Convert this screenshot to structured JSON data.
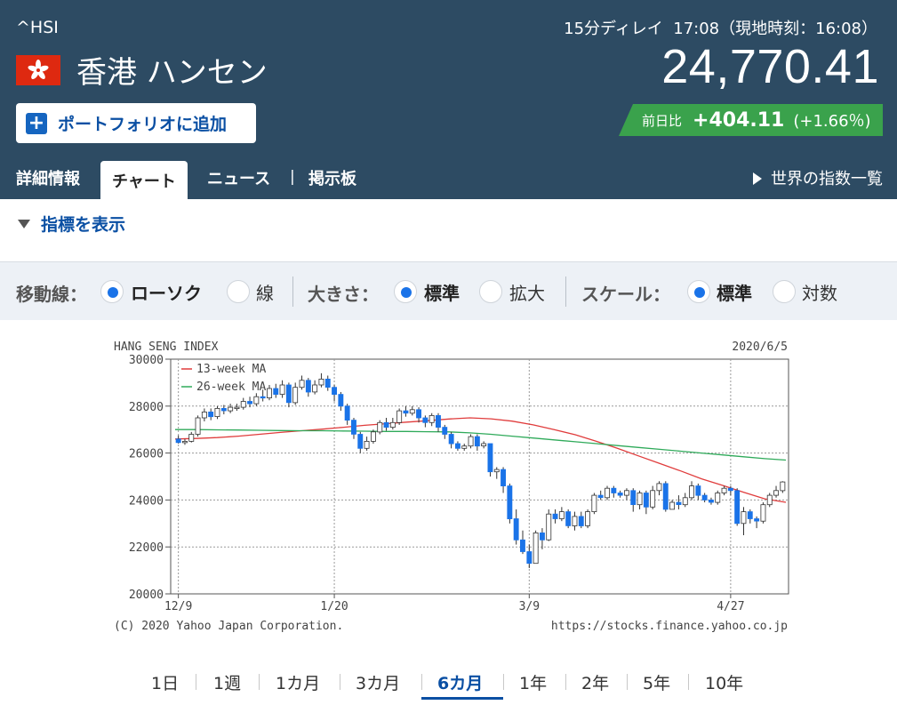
{
  "header": {
    "ticker": "^HSI",
    "name": "香港 ハンセン",
    "add_button": "ポートフォリオに追加",
    "delay": "15分ディレイ",
    "time": "17:08（現地時刻：16:08）",
    "price": "24,770.41",
    "change_label": "前日比",
    "change_value": "+404.11",
    "change_percent": "(+1.66％)",
    "colors": {
      "background": "#2d4b63",
      "change_bg": "#3aa24c",
      "flag": "#de2910"
    }
  },
  "tabs": [
    {
      "label": "詳細情報"
    },
    {
      "label": "チャート",
      "active": true
    },
    {
      "label": "ニュース"
    },
    {
      "label": "掲示板"
    }
  ],
  "tab_separator": "|",
  "world_link": "世界の指数一覧",
  "indicator_toggle": "指標を表示",
  "options": {
    "ma_label": "移動線：",
    "ma_options": [
      {
        "label": "ローソク",
        "selected": true
      },
      {
        "label": "線",
        "selected": false
      }
    ],
    "size_label": "大きさ：",
    "size_options": [
      {
        "label": "標準",
        "selected": true
      },
      {
        "label": "拡大",
        "selected": false
      }
    ],
    "scale_label": "スケール：",
    "scale_options": [
      {
        "label": "標準",
        "selected": true
      },
      {
        "label": "対数",
        "selected": false
      }
    ]
  },
  "periods": [
    {
      "label": "1日"
    },
    {
      "label": "1週"
    },
    {
      "label": "1カ月"
    },
    {
      "label": "3カ月"
    },
    {
      "label": "6カ月",
      "active": true
    },
    {
      "label": "1年"
    },
    {
      "label": "2年"
    },
    {
      "label": "5年"
    },
    {
      "label": "10年"
    }
  ],
  "chart_data": {
    "type": "candlestick",
    "title": "HANG SENG INDEX",
    "date": "2020/6/5",
    "copyright": "(C) 2020 Yahoo Japan Corporation.",
    "url": "https://stocks.finance.yahoo.co.jp",
    "ylim": [
      20000,
      30000
    ],
    "yticks": [
      30000,
      28000,
      26000,
      24000,
      22000,
      20000
    ],
    "ytick_labels": [
      "30000",
      "28000",
      "26000",
      "24000",
      "22000",
      "20000"
    ],
    "xticks": [
      {
        "label": "12/9",
        "index": 0
      },
      {
        "label": "1/20",
        "index": 24
      },
      {
        "label": "3/9",
        "index": 54
      },
      {
        "label": "4/27",
        "index": 85
      }
    ],
    "legend": [
      {
        "name": "13-week MA",
        "color": "#e03c3c"
      },
      {
        "name": "26-week MA",
        "color": "#2faa5a"
      }
    ],
    "up_color": "#ffffff",
    "down_color": "#1a73e8",
    "candles": [
      [
        26600,
        26450,
        26750,
        26400
      ],
      [
        26450,
        26500,
        26600,
        26350
      ],
      [
        26500,
        26800,
        26900,
        26450
      ],
      [
        26800,
        27500,
        27600,
        26700
      ],
      [
        27500,
        27750,
        27900,
        27350
      ],
      [
        27750,
        27550,
        27900,
        27400
      ],
      [
        27550,
        27900,
        28000,
        27450
      ],
      [
        27900,
        27800,
        28050,
        27650
      ],
      [
        27800,
        27950,
        28100,
        27700
      ],
      [
        27950,
        27950,
        28100,
        27800
      ],
      [
        27950,
        28200,
        28350,
        27850
      ],
      [
        28200,
        28100,
        28400,
        27950
      ],
      [
        28100,
        28400,
        28550,
        28000
      ],
      [
        28400,
        28350,
        28700,
        28200
      ],
      [
        28350,
        28750,
        28900,
        28250
      ],
      [
        28750,
        28500,
        28950,
        28350
      ],
      [
        28500,
        28900,
        29100,
        28350
      ],
      [
        28900,
        28150,
        29000,
        27950
      ],
      [
        28150,
        28800,
        29000,
        28050
      ],
      [
        28800,
        29100,
        29300,
        28700
      ],
      [
        29100,
        28600,
        29200,
        28400
      ],
      [
        28600,
        28900,
        29100,
        28500
      ],
      [
        28900,
        29150,
        29400,
        28800
      ],
      [
        29150,
        28800,
        29300,
        28650
      ],
      [
        28800,
        28500,
        28900,
        28200
      ],
      [
        28500,
        28000,
        28600,
        27800
      ],
      [
        28000,
        27400,
        28100,
        27200
      ],
      [
        27400,
        26800,
        27500,
        26600
      ],
      [
        26800,
        26200,
        26900,
        26000
      ],
      [
        26200,
        26500,
        26700,
        26100
      ],
      [
        26500,
        26900,
        27000,
        26400
      ],
      [
        26900,
        27300,
        27400,
        26800
      ],
      [
        27300,
        27100,
        27500,
        26950
      ],
      [
        27100,
        27300,
        27500,
        27000
      ],
      [
        27300,
        27800,
        27900,
        27200
      ],
      [
        27800,
        27700,
        28000,
        27550
      ],
      [
        27700,
        27850,
        28000,
        27600
      ],
      [
        27850,
        27500,
        27950,
        27300
      ],
      [
        27500,
        27300,
        27600,
        27100
      ],
      [
        27300,
        27600,
        27700,
        27150
      ],
      [
        27600,
        27100,
        27700,
        26900
      ],
      [
        27100,
        26800,
        27200,
        26600
      ],
      [
        26800,
        26400,
        26900,
        26200
      ],
      [
        26400,
        26200,
        26500,
        26100
      ],
      [
        26200,
        26300,
        26400,
        26100
      ],
      [
        26300,
        26700,
        26800,
        26200
      ],
      [
        26700,
        26300,
        26800,
        26100
      ],
      [
        26300,
        26400,
        26500,
        26200
      ],
      [
        26400,
        25200,
        26400,
        25000
      ],
      [
        25200,
        25300,
        25400,
        24900
      ],
      [
        25300,
        24600,
        25400,
        24300
      ],
      [
        24600,
        23200,
        24700,
        23000
      ],
      [
        23200,
        22300,
        23600,
        22100
      ],
      [
        22300,
        21800,
        22700,
        21700
      ],
      [
        21800,
        21300,
        22100,
        21100
      ],
      [
        21300,
        22600,
        22700,
        21300
      ],
      [
        22600,
        22300,
        22800,
        21900
      ],
      [
        22300,
        23400,
        23600,
        22250
      ],
      [
        23400,
        23200,
        23600,
        23000
      ],
      [
        23200,
        23500,
        23700,
        23100
      ],
      [
        23500,
        22900,
        23600,
        22800
      ],
      [
        22900,
        23300,
        23500,
        22700
      ],
      [
        23300,
        22900,
        23500,
        22800
      ],
      [
        22900,
        23500,
        23600,
        22800
      ],
      [
        23500,
        24200,
        24300,
        23400
      ],
      [
        24200,
        24100,
        24400,
        24000
      ],
      [
        24100,
        24500,
        24600,
        24000
      ],
      [
        24500,
        24300,
        24600,
        24100
      ],
      [
        24300,
        24200,
        24400,
        24100
      ],
      [
        24200,
        24400,
        24500,
        24000
      ],
      [
        24400,
        23800,
        24500,
        23500
      ],
      [
        23800,
        24300,
        24400,
        23600
      ],
      [
        24300,
        23700,
        24400,
        23400
      ],
      [
        23700,
        24400,
        24600,
        23600
      ],
      [
        24400,
        24700,
        24800,
        24200
      ],
      [
        24700,
        23600,
        24800,
        23500
      ],
      [
        23600,
        23900,
        24000,
        23600
      ],
      [
        23900,
        23800,
        24200,
        23600
      ],
      [
        23800,
        24100,
        24300,
        23700
      ],
      [
        24100,
        24600,
        24800,
        24000
      ],
      [
        24600,
        24200,
        24700,
        24000
      ],
      [
        24200,
        24000,
        24300,
        23900
      ],
      [
        24000,
        23900,
        24100,
        23800
      ],
      [
        23900,
        24300,
        24400,
        23800
      ],
      [
        24300,
        24500,
        24600,
        24200
      ],
      [
        24500,
        24400,
        24600,
        24200
      ],
      [
        24400,
        23000,
        24500,
        22900
      ],
      [
        23000,
        23500,
        23700,
        22500
      ],
      [
        23500,
        23200,
        23600,
        23000
      ],
      [
        23200,
        23100,
        23300,
        22800
      ],
      [
        23100,
        23800,
        23900,
        23000
      ],
      [
        23800,
        24200,
        24300,
        23700
      ],
      [
        24200,
        24400,
        24600,
        24100
      ],
      [
        24400,
        24770,
        24800,
        24300
      ]
    ],
    "ma13": [
      26600,
      26620,
      26660,
      26720,
      26800,
      26880,
      26950,
      27020,
      27100,
      27180,
      27250,
      27320,
      27380,
      27450,
      27500,
      27460,
      27360,
      27200,
      27000,
      26780,
      26500,
      26200,
      25880,
      25560,
      25240,
      24900,
      24620,
      24330,
      24050,
      23900
    ],
    "ma26": [
      27000,
      27000,
      26990,
      26980,
      26970,
      26960,
      26950,
      26950,
      26940,
      26930,
      26920,
      26920,
      26910,
      26900,
      26860,
      26800,
      26720,
      26640,
      26560,
      26480,
      26400,
      26320,
      26240,
      26160,
      26080,
      26000,
      25920,
      25840,
      25760,
      25700
    ],
    "ma_points": 30
  }
}
